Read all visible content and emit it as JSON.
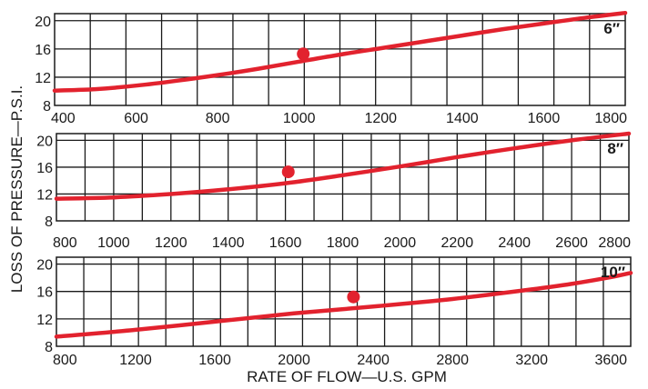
{
  "chart_data": [
    {
      "type": "line",
      "panel_label": "6″",
      "x_ticks": [
        "400",
        "600",
        "800",
        "1000",
        "1200",
        "1400",
        "1600",
        "1800"
      ],
      "y_ticks": [
        "20",
        "16",
        "12",
        "8"
      ],
      "xlim": [
        400,
        1800
      ],
      "ylim": [
        8,
        21
      ],
      "curve": {
        "x": [
          400,
          500,
          600,
          700,
          800,
          900,
          1000,
          1100,
          1200,
          1300,
          1400,
          1500,
          1600,
          1700,
          1800
        ],
        "y": [
          10.1,
          10.3,
          10.8,
          11.5,
          12.3,
          13.2,
          14.2,
          15.2,
          16.1,
          17.0,
          17.9,
          18.8,
          19.6,
          20.4,
          21.1
        ]
      },
      "point": {
        "x": 1010,
        "y": 15.3
      }
    },
    {
      "type": "line",
      "panel_label": "8″",
      "x_ticks": [
        "800",
        "1000",
        "1200",
        "1400",
        "1600",
        "1800",
        "2000",
        "2200",
        "2400",
        "2600",
        "2800"
      ],
      "y_ticks": [
        "20",
        "16",
        "12",
        "8"
      ],
      "xlim": [
        800,
        2800
      ],
      "ylim": [
        8,
        21
      ],
      "curve": {
        "x": [
          800,
          1000,
          1200,
          1400,
          1600,
          1800,
          2000,
          2200,
          2400,
          2600,
          2800
        ],
        "y": [
          11.3,
          11.5,
          12.0,
          12.7,
          13.6,
          14.8,
          16.1,
          17.5,
          18.8,
          20.0,
          21.0
        ]
      },
      "point": {
        "x": 1610,
        "y": 15.3
      }
    },
    {
      "type": "line",
      "panel_label": "10″",
      "x_ticks": [
        "800",
        "1200",
        "1600",
        "2000",
        "2400",
        "2800",
        "3200",
        "3600"
      ],
      "y_ticks": [
        "20",
        "16",
        "12",
        "8"
      ],
      "xlim": [
        800,
        3700
      ],
      "ylim": [
        8,
        21
      ],
      "curve": {
        "x": [
          800,
          1200,
          1600,
          2000,
          2400,
          2800,
          3200,
          3400,
          3600,
          3700
        ],
        "y": [
          9.4,
          10.4,
          11.6,
          12.8,
          13.8,
          14.9,
          16.3,
          17.1,
          18.1,
          18.7
        ]
      },
      "point": {
        "x": 2300,
        "y": 15.2
      }
    }
  ],
  "ylabel": "LOSS OF PRESSURE—P.S.I.",
  "xlabel": "RATE OF FLOW—U.S. GPM",
  "colors": {
    "curve": "#e2222e",
    "grid": "#1a1a1a"
  }
}
